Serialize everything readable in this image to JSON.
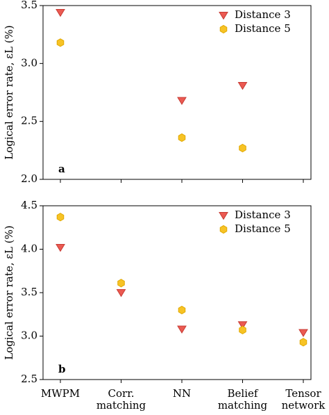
{
  "chart_data": {
    "type": "scatter",
    "ylabel": "Logical error rate, εL (%)",
    "categories": [
      "MWPM",
      "Corr.\nmatching",
      "NN",
      "Belief\nmatching",
      "Tensor\nnetwork"
    ],
    "legend": "upper right",
    "panels": [
      {
        "label": "a",
        "ylim": [
          2.0,
          3.5
        ],
        "yticks": [
          {
            "value": 2,
            "label": "2.0"
          },
          2.5,
          {
            "value": 3,
            "label": "3.0"
          },
          3.5
        ],
        "series": [
          {
            "name": "Distance 3",
            "color": "#eb5a52",
            "marker": "triangle-down",
            "values": [
              3.44,
              null,
              2.68,
              2.81,
              null
            ]
          },
          {
            "name": "Distance 5",
            "color": "#f7c325",
            "marker": "hexagon",
            "values": [
              3.18,
              null,
              2.36,
              2.27,
              null
            ]
          }
        ]
      },
      {
        "label": "b",
        "ylim": [
          2.5,
          4.5
        ],
        "yticks": [
          2.5,
          {
            "value": 3,
            "label": "3.0"
          },
          3.5,
          {
            "value": 4,
            "label": "4.0"
          },
          4.5
        ],
        "series": [
          {
            "name": "Distance 3",
            "color": "#eb5a52",
            "marker": "triangle-down",
            "values": [
              4.02,
              3.5,
              3.08,
              3.13,
              3.04
            ]
          },
          {
            "name": "Distance 5",
            "color": "#f7c325",
            "marker": "hexagon",
            "values": [
              4.37,
              3.61,
              3.3,
              3.07,
              2.93
            ]
          }
        ]
      }
    ]
  }
}
